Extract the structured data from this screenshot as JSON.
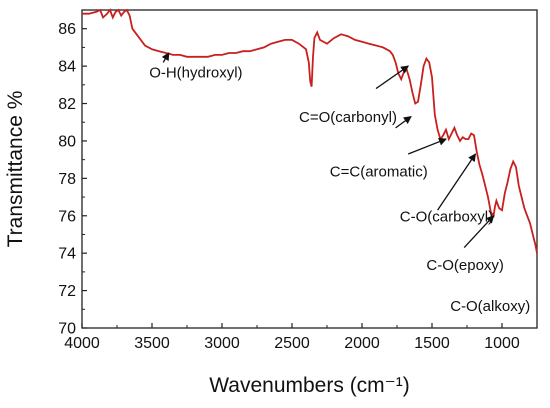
{
  "chart_data": {
    "type": "line",
    "xlabel": "Wavenumbers (cm⁻¹)",
    "ylabel": "Transmittance %",
    "xlim": [
      4000,
      750
    ],
    "ylim": [
      70,
      87
    ],
    "x_reversed": true,
    "grid": false,
    "x_ticks": [
      4000,
      3500,
      3000,
      2500,
      2000,
      1500,
      1000
    ],
    "y_ticks": [
      70,
      72,
      74,
      76,
      78,
      80,
      82,
      84,
      86
    ],
    "series": [
      {
        "color": "#c8201e",
        "x": [
          4000,
          3950,
          3900,
          3870,
          3850,
          3820,
          3800,
          3780,
          3760,
          3740,
          3720,
          3700,
          3680,
          3660,
          3640,
          3600,
          3550,
          3500,
          3450,
          3400,
          3350,
          3300,
          3250,
          3200,
          3150,
          3100,
          3050,
          3000,
          2950,
          2900,
          2850,
          2800,
          2750,
          2700,
          2650,
          2600,
          2550,
          2500,
          2450,
          2400,
          2380,
          2370,
          2360,
          2350,
          2340,
          2320,
          2300,
          2250,
          2200,
          2150,
          2100,
          2050,
          2000,
          1950,
          1900,
          1850,
          1800,
          1780,
          1760,
          1740,
          1720,
          1700,
          1680,
          1660,
          1640,
          1620,
          1600,
          1580,
          1560,
          1540,
          1520,
          1500,
          1480,
          1460,
          1440,
          1420,
          1400,
          1380,
          1360,
          1340,
          1320,
          1300,
          1280,
          1260,
          1240,
          1220,
          1200,
          1180,
          1160,
          1140,
          1120,
          1100,
          1080,
          1060,
          1050,
          1040,
          1020,
          1000,
          980,
          960,
          940,
          920,
          900,
          880,
          860,
          840,
          820,
          800,
          780,
          760,
          750
        ],
        "y": [
          86.8,
          86.8,
          86.9,
          87.0,
          86.6,
          86.8,
          87.0,
          86.6,
          86.9,
          87.0,
          86.7,
          86.9,
          87.0,
          86.7,
          86.0,
          85.6,
          85.1,
          84.9,
          84.8,
          84.7,
          84.6,
          84.6,
          84.5,
          84.5,
          84.5,
          84.5,
          84.6,
          84.6,
          84.7,
          84.7,
          84.8,
          84.8,
          84.9,
          85.0,
          85.2,
          85.3,
          85.4,
          85.4,
          85.2,
          84.9,
          84.2,
          83.2,
          82.9,
          84.5,
          85.5,
          85.8,
          85.4,
          85.2,
          85.5,
          85.7,
          85.6,
          85.4,
          85.3,
          85.2,
          85.1,
          85.0,
          84.8,
          84.6,
          84.2,
          83.6,
          83.3,
          83.7,
          83.8,
          83.3,
          82.6,
          82.0,
          82.1,
          83.0,
          84.0,
          84.4,
          84.2,
          83.4,
          81.4,
          80.6,
          80.1,
          80.3,
          80.6,
          80.1,
          80.4,
          80.7,
          80.3,
          80.0,
          80.2,
          80.1,
          80.1,
          80.4,
          80.3,
          79.4,
          78.7,
          78.2,
          77.6,
          77.0,
          76.2,
          76.0,
          76.5,
          76.8,
          76.4,
          76.3,
          77.2,
          77.8,
          78.5,
          78.9,
          78.6,
          77.6,
          77.0,
          76.4,
          76.0,
          75.6,
          75.0,
          74.4,
          74.0
        ]
      }
    ],
    "annotations": [
      {
        "text": "O-H(hydroxyl)",
        "x": 3520,
        "y": 83.4,
        "anchor": "start",
        "arrow_from": [
          3420,
          84.2
        ],
        "arrow_to": [
          3380,
          84.7
        ]
      },
      {
        "text": "C=O(carbonyl)",
        "x": 2450,
        "y": 81.0,
        "anchor": "start",
        "arrow_from": [
          1900,
          82.8
        ],
        "arrow_to": [
          1670,
          84.0
        ]
      },
      {
        "text": "",
        "x": 0,
        "y": 0,
        "anchor": "start",
        "arrow_from": [
          1760,
          80.7
        ],
        "arrow_to": [
          1650,
          81.3
        ]
      },
      {
        "text": "C=C(aromatic)",
        "x": 2230,
        "y": 78.1,
        "anchor": "start",
        "arrow_from": [
          1670,
          79.3
        ],
        "arrow_to": [
          1400,
          80.1
        ]
      },
      {
        "text": "C-O(carboxyl)",
        "x": 1730,
        "y": 75.7,
        "anchor": "start",
        "arrow_from": [
          1460,
          76.3
        ],
        "arrow_to": [
          1190,
          79.3
        ]
      },
      {
        "text": "C-O(epoxy)",
        "x": 1540,
        "y": 73.1,
        "anchor": "start",
        "arrow_from": [
          1270,
          74.3
        ],
        "arrow_to": [
          1060,
          76.0
        ]
      },
      {
        "text": "C-O(alkoxy)",
        "x": 1370,
        "y": 70.9,
        "anchor": "start"
      }
    ]
  }
}
